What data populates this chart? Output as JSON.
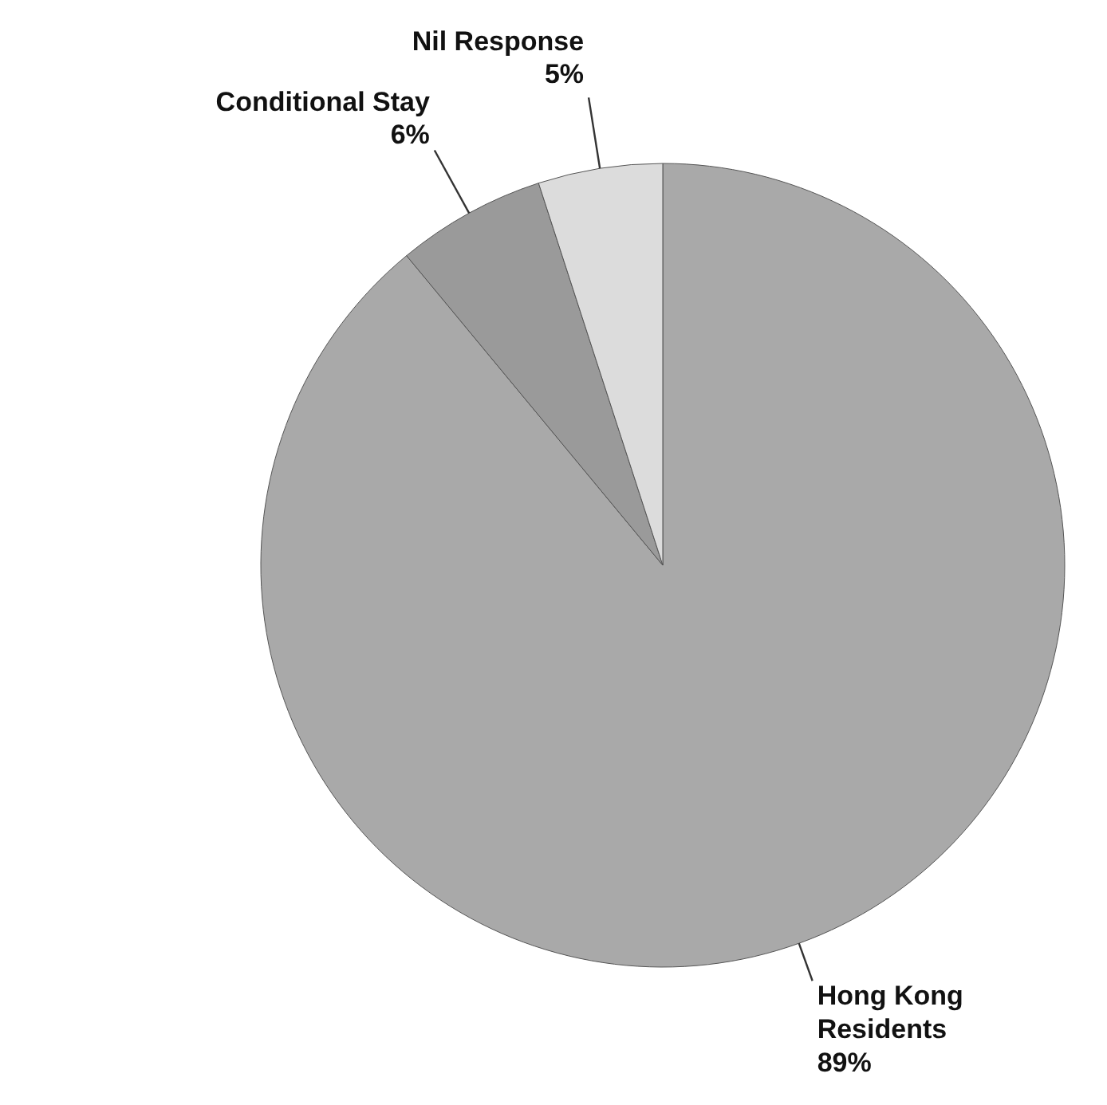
{
  "chart_data": {
    "type": "pie",
    "categories": [
      "Hong Kong Residents",
      "Conditional Stay",
      "Nil Response"
    ],
    "values": [
      89,
      6,
      5
    ],
    "colors": [
      "#a9a9a9",
      "#9a9a9a",
      "#dcdcdc"
    ],
    "value_labels": [
      "89%",
      "6%",
      "5%"
    ]
  }
}
